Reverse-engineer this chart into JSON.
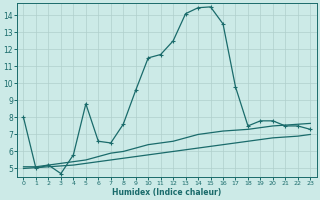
{
  "xlabel": "Humidex (Indice chaleur)",
  "bg_color": "#cceae7",
  "grid_color": "#b0cfcc",
  "line_color": "#1a6b6b",
  "xlim": [
    -0.5,
    23.5
  ],
  "ylim": [
    4.5,
    14.7
  ],
  "xticks": [
    0,
    1,
    2,
    3,
    4,
    5,
    6,
    7,
    8,
    9,
    10,
    11,
    12,
    13,
    14,
    15,
    16,
    17,
    18,
    19,
    20,
    21,
    22,
    23
  ],
  "yticks": [
    5,
    6,
    7,
    8,
    9,
    10,
    11,
    12,
    13,
    14
  ],
  "line1_x": [
    0,
    1,
    2,
    3,
    4,
    5,
    6,
    7,
    8,
    9,
    10,
    11,
    12,
    13,
    14,
    15,
    16,
    17,
    18,
    19,
    20,
    21,
    22,
    23
  ],
  "line1_y": [
    8.0,
    5.0,
    5.2,
    4.7,
    5.8,
    8.8,
    6.6,
    6.5,
    7.6,
    9.6,
    11.5,
    11.7,
    12.5,
    14.1,
    14.45,
    14.5,
    13.5,
    9.8,
    7.5,
    7.8,
    7.8,
    7.5,
    7.5,
    7.3
  ],
  "line2_x": [
    0,
    1,
    2,
    3,
    4,
    5,
    6,
    7,
    8,
    9,
    10,
    11,
    12,
    13,
    14,
    15,
    16,
    17,
    18,
    19,
    20,
    21,
    22,
    23
  ],
  "line2_y": [
    5.0,
    5.05,
    5.1,
    5.15,
    5.2,
    5.3,
    5.4,
    5.5,
    5.6,
    5.7,
    5.8,
    5.9,
    6.0,
    6.1,
    6.2,
    6.3,
    6.4,
    6.5,
    6.6,
    6.7,
    6.8,
    6.85,
    6.9,
    7.0
  ],
  "line3_x": [
    0,
    1,
    2,
    3,
    4,
    5,
    6,
    7,
    8,
    9,
    10,
    11,
    12,
    13,
    14,
    15,
    16,
    17,
    18,
    19,
    20,
    21,
    22,
    23
  ],
  "line3_y": [
    5.1,
    5.1,
    5.2,
    5.3,
    5.4,
    5.5,
    5.7,
    5.9,
    6.0,
    6.2,
    6.4,
    6.5,
    6.6,
    6.8,
    7.0,
    7.1,
    7.2,
    7.25,
    7.3,
    7.4,
    7.5,
    7.55,
    7.6,
    7.65
  ]
}
